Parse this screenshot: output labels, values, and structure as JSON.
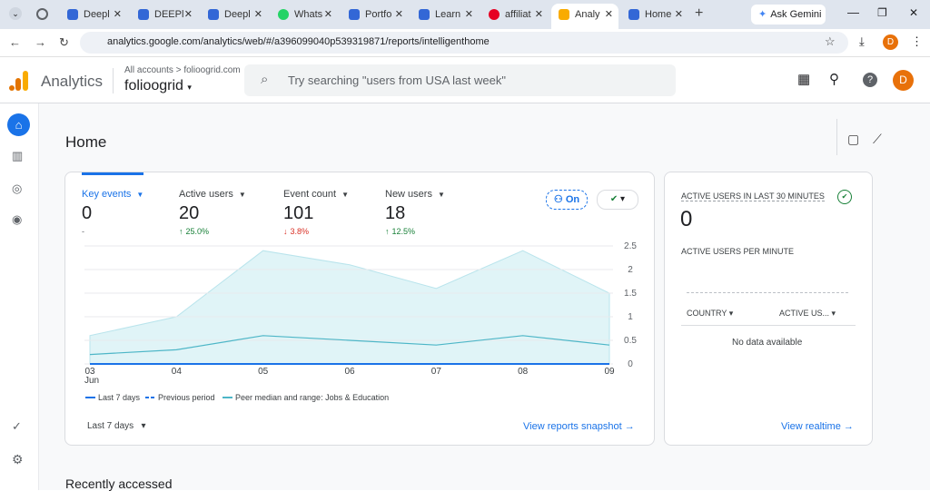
{
  "browser": {
    "tabs": [
      "Deepl",
      "DEEPl",
      "Deepl",
      "Whats",
      "Portfo",
      "Learn",
      "affiliat",
      "Analy",
      "Home"
    ],
    "ask_gemini": "Ask Gemini",
    "url": "analytics.google.com/analytics/web/#/a396099040p539319871/reports/intelligenthome",
    "profile_initial": "D"
  },
  "header": {
    "product": "Analytics",
    "breadcrumb": "All accounts",
    "account": "folioogrid.com",
    "property": "folioogrid",
    "search_placeholder": "Try searching \"users from USA last week\"",
    "profile_initial": "D"
  },
  "page": {
    "title": "Home"
  },
  "metrics": [
    {
      "label": "Key events",
      "value": 0,
      "change": "-"
    },
    {
      "label": "Active users",
      "value": 20,
      "change": "25.0%"
    },
    {
      "label": "Event count",
      "value": 101,
      "change": "3.8%"
    },
    {
      "label": "New users",
      "value": 18,
      "change": "12.5%"
    }
  ],
  "comparison_toggle": "On",
  "chart_data": {
    "type": "line",
    "categories": [
      "03",
      "04",
      "05",
      "06",
      "07",
      "08",
      "09"
    ],
    "month_label": "Jun",
    "ylim": [
      0,
      2.5
    ],
    "yticks": [
      0,
      0.5,
      1,
      1.5,
      2,
      2.5
    ],
    "grid": true,
    "series": [
      {
        "name": "Last 7 days",
        "color": "#1a73e8",
        "values": [
          0,
          0,
          0,
          0,
          0,
          0,
          0
        ]
      },
      {
        "name": "Previous period",
        "color": "#1a73e8",
        "dashed": true,
        "values": [
          0,
          0,
          0,
          0,
          0,
          0,
          0
        ]
      },
      {
        "name": "Peer median and range: Jobs & Education",
        "color": "#4db6c7",
        "range_color": "#e0f4f7",
        "values": [
          0.2,
          0.3,
          0.6,
          0.5,
          0.4,
          0.6,
          0.4
        ],
        "upper": [
          0.6,
          1.0,
          2.4,
          2.1,
          1.6,
          2.4,
          1.5
        ],
        "lower": [
          0,
          0,
          0,
          0,
          0,
          0,
          0
        ]
      }
    ]
  },
  "date_range": "Last 7 days",
  "snapshot_link": "View reports snapshot",
  "realtime": {
    "title": "ACTIVE USERS IN LAST 30 MINUTES",
    "value": 0,
    "per_minute": "ACTIVE USERS PER MINUTE",
    "columns": [
      "COUNTRY",
      "ACTIVE US..."
    ],
    "empty": "No data available",
    "link": "View realtime"
  },
  "recent": "Recently accessed"
}
